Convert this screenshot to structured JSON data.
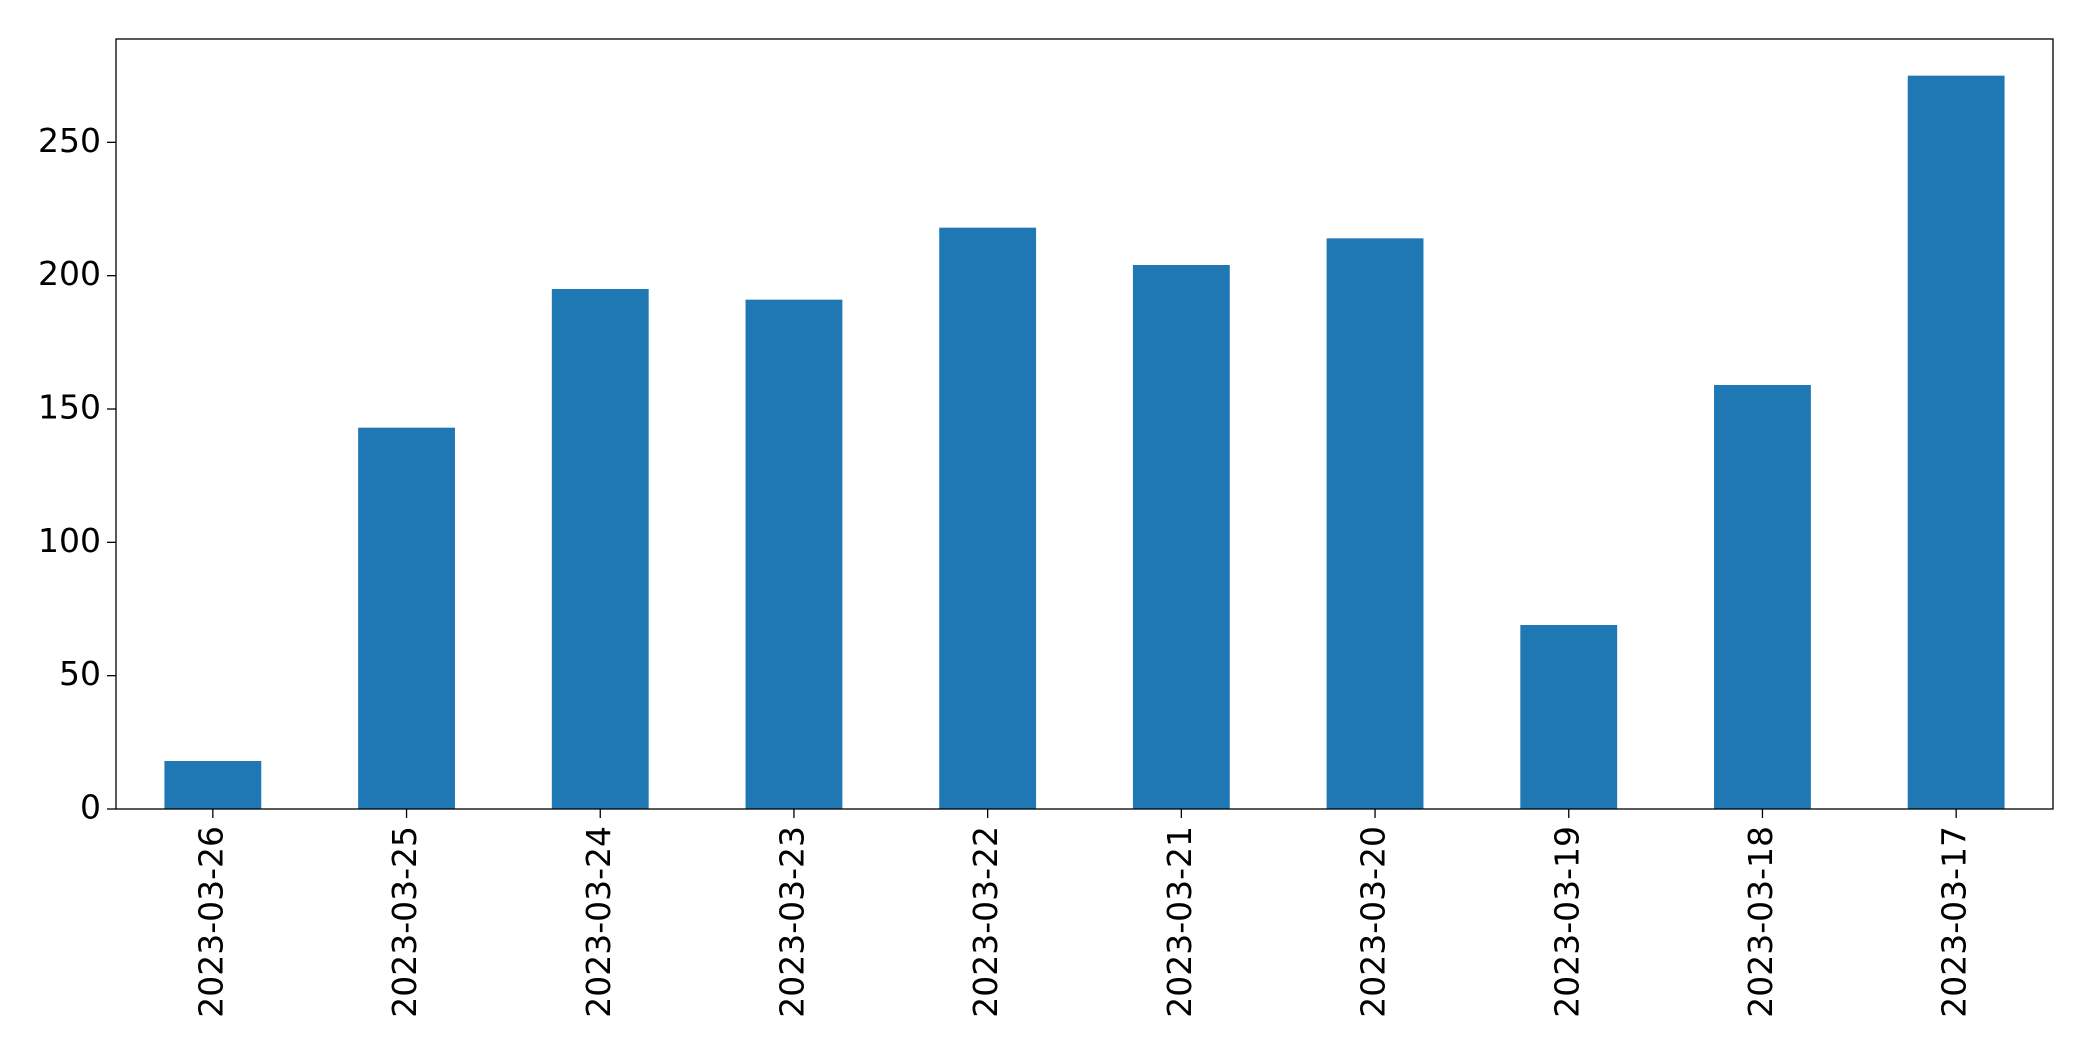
{
  "chart_data": {
    "type": "bar",
    "categories": [
      "2023-03-26",
      "2023-03-25",
      "2023-03-24",
      "2023-03-23",
      "2023-03-22",
      "2023-03-21",
      "2023-03-20",
      "2023-03-19",
      "2023-03-18",
      "2023-03-17"
    ],
    "values": [
      18,
      143,
      195,
      191,
      218,
      204,
      214,
      69,
      159,
      275
    ],
    "color": "#1f77b4",
    "ylim": [
      0,
      288.75
    ],
    "yticks": [
      0,
      50,
      100,
      150,
      200,
      250
    ],
    "grid": false
  }
}
